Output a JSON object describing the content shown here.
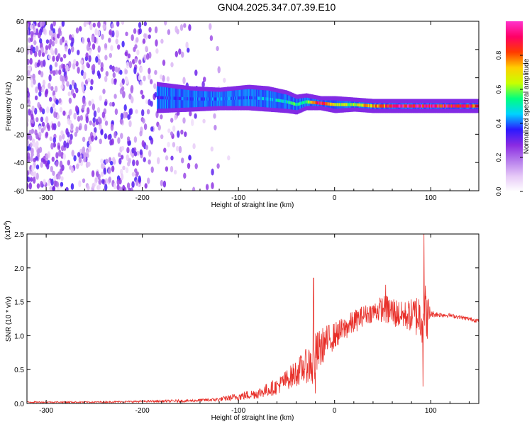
{
  "title": "GN04.2025.347.07.39.E10",
  "chart_data": [
    {
      "type": "heatmap",
      "xlabel": "Height of straight line (km)",
      "ylabel": "Frequency (Hz)",
      "xlim": [
        -320,
        150
      ],
      "ylim": [
        -60,
        60
      ],
      "x_ticks": [
        -300,
        -200,
        -100,
        0,
        100
      ],
      "y_ticks": [
        -60,
        -40,
        -20,
        0,
        20,
        40,
        60
      ],
      "colorbar": {
        "label": "Normalized spectral amplitude",
        "range": [
          0.0,
          1.0
        ],
        "ticks": [
          "0.0",
          "0.2",
          "0.4",
          "0.6",
          "0.8"
        ],
        "tick_values": [
          0.0,
          0.2,
          0.4,
          0.6,
          0.8
        ],
        "colors": [
          "#ffffff",
          "#e6c8f7",
          "#b57cec",
          "#8a2be2",
          "#2b19ff",
          "#00d2ff",
          "#00ff7f",
          "#c8ff00",
          "#ffcf00",
          "#ff3b00",
          "#ff0066",
          "#ff33cc"
        ]
      },
      "band_trace": [
        {
          "x": -185,
          "center": 6,
          "halfwidth": 8,
          "amp": 0.35
        },
        {
          "x": -150,
          "center": 5,
          "halfwidth": 6,
          "amp": 0.4
        },
        {
          "x": -120,
          "center": 5,
          "halfwidth": 5,
          "amp": 0.4
        },
        {
          "x": -90,
          "center": 6,
          "halfwidth": 6,
          "amp": 0.4
        },
        {
          "x": -70,
          "center": 5,
          "halfwidth": 6,
          "amp": 0.45
        },
        {
          "x": -50,
          "center": 3,
          "halfwidth": 5,
          "amp": 0.5
        },
        {
          "x": -40,
          "center": 1,
          "halfwidth": 4,
          "amp": 0.55
        },
        {
          "x": -30,
          "center": 3,
          "halfwidth": 3,
          "amp": 0.55
        },
        {
          "x": -15,
          "center": 2,
          "halfwidth": 2,
          "amp": 0.9
        },
        {
          "x": 0,
          "center": 1,
          "halfwidth": 3,
          "amp": 0.6
        },
        {
          "x": 20,
          "center": 1,
          "halfwidth": 2,
          "amp": 0.65
        },
        {
          "x": 40,
          "center": 0,
          "halfwidth": 2,
          "amp": 0.75
        },
        {
          "x": 60,
          "center": 0,
          "halfwidth": 2,
          "amp": 0.9
        },
        {
          "x": 80,
          "center": 0,
          "halfwidth": 2,
          "amp": 0.9
        },
        {
          "x": 100,
          "center": 0,
          "halfwidth": 2,
          "amp": 0.9
        },
        {
          "x": 150,
          "center": 0,
          "halfwidth": 2,
          "amp": 0.85
        }
      ]
    },
    {
      "type": "line",
      "xlabel": "Height of straight line (km)",
      "ylabel": "SNR (10 * v/v)",
      "y_multiplier": "(x10",
      "y_multiplier_exp": "4",
      "xlim": [
        -320,
        150
      ],
      "ylim": [
        0,
        2.5
      ],
      "x_ticks": [
        -300,
        -200,
        -100,
        0,
        100
      ],
      "y_ticks": [
        0.0,
        0.5,
        1.0,
        1.5,
        2.0,
        2.5
      ],
      "y_tick_labels": [
        "0.0",
        "0.5",
        "1.0",
        "1.5",
        "2.0",
        "2.5"
      ],
      "color": "#e8302a",
      "envelope": {
        "x": [
          -320,
          -250,
          -200,
          -150,
          -120,
          -100,
          -80,
          -60,
          -50,
          -40,
          -30,
          -25,
          -22,
          -20,
          -15,
          -10,
          0,
          10,
          20,
          30,
          40,
          50,
          60,
          70,
          80,
          90,
          95,
          100,
          120,
          150
        ],
        "base": [
          0.02,
          0.02,
          0.03,
          0.04,
          0.06,
          0.1,
          0.15,
          0.25,
          0.35,
          0.45,
          0.55,
          0.6,
          0.5,
          0.7,
          0.8,
          0.9,
          1.0,
          1.1,
          1.2,
          1.3,
          1.35,
          1.4,
          1.35,
          1.3,
          1.3,
          1.3,
          1.3,
          1.32,
          1.3,
          1.22
        ],
        "amp": [
          0.01,
          0.01,
          0.015,
          0.02,
          0.03,
          0.06,
          0.08,
          0.12,
          0.15,
          0.2,
          0.25,
          0.3,
          0.4,
          0.35,
          0.3,
          0.25,
          0.2,
          0.18,
          0.18,
          0.15,
          0.15,
          0.2,
          0.25,
          0.2,
          0.25,
          0.4,
          0.5,
          0.05,
          0.03,
          0.03
        ]
      },
      "spikes": [
        {
          "x": -22,
          "y": 1.85
        },
        {
          "x": -20,
          "y": 0.15
        },
        {
          "x": 53,
          "y": 1.75
        },
        {
          "x": 93,
          "y": 2.5
        },
        {
          "x": 92,
          "y": 0.25
        }
      ]
    }
  ]
}
